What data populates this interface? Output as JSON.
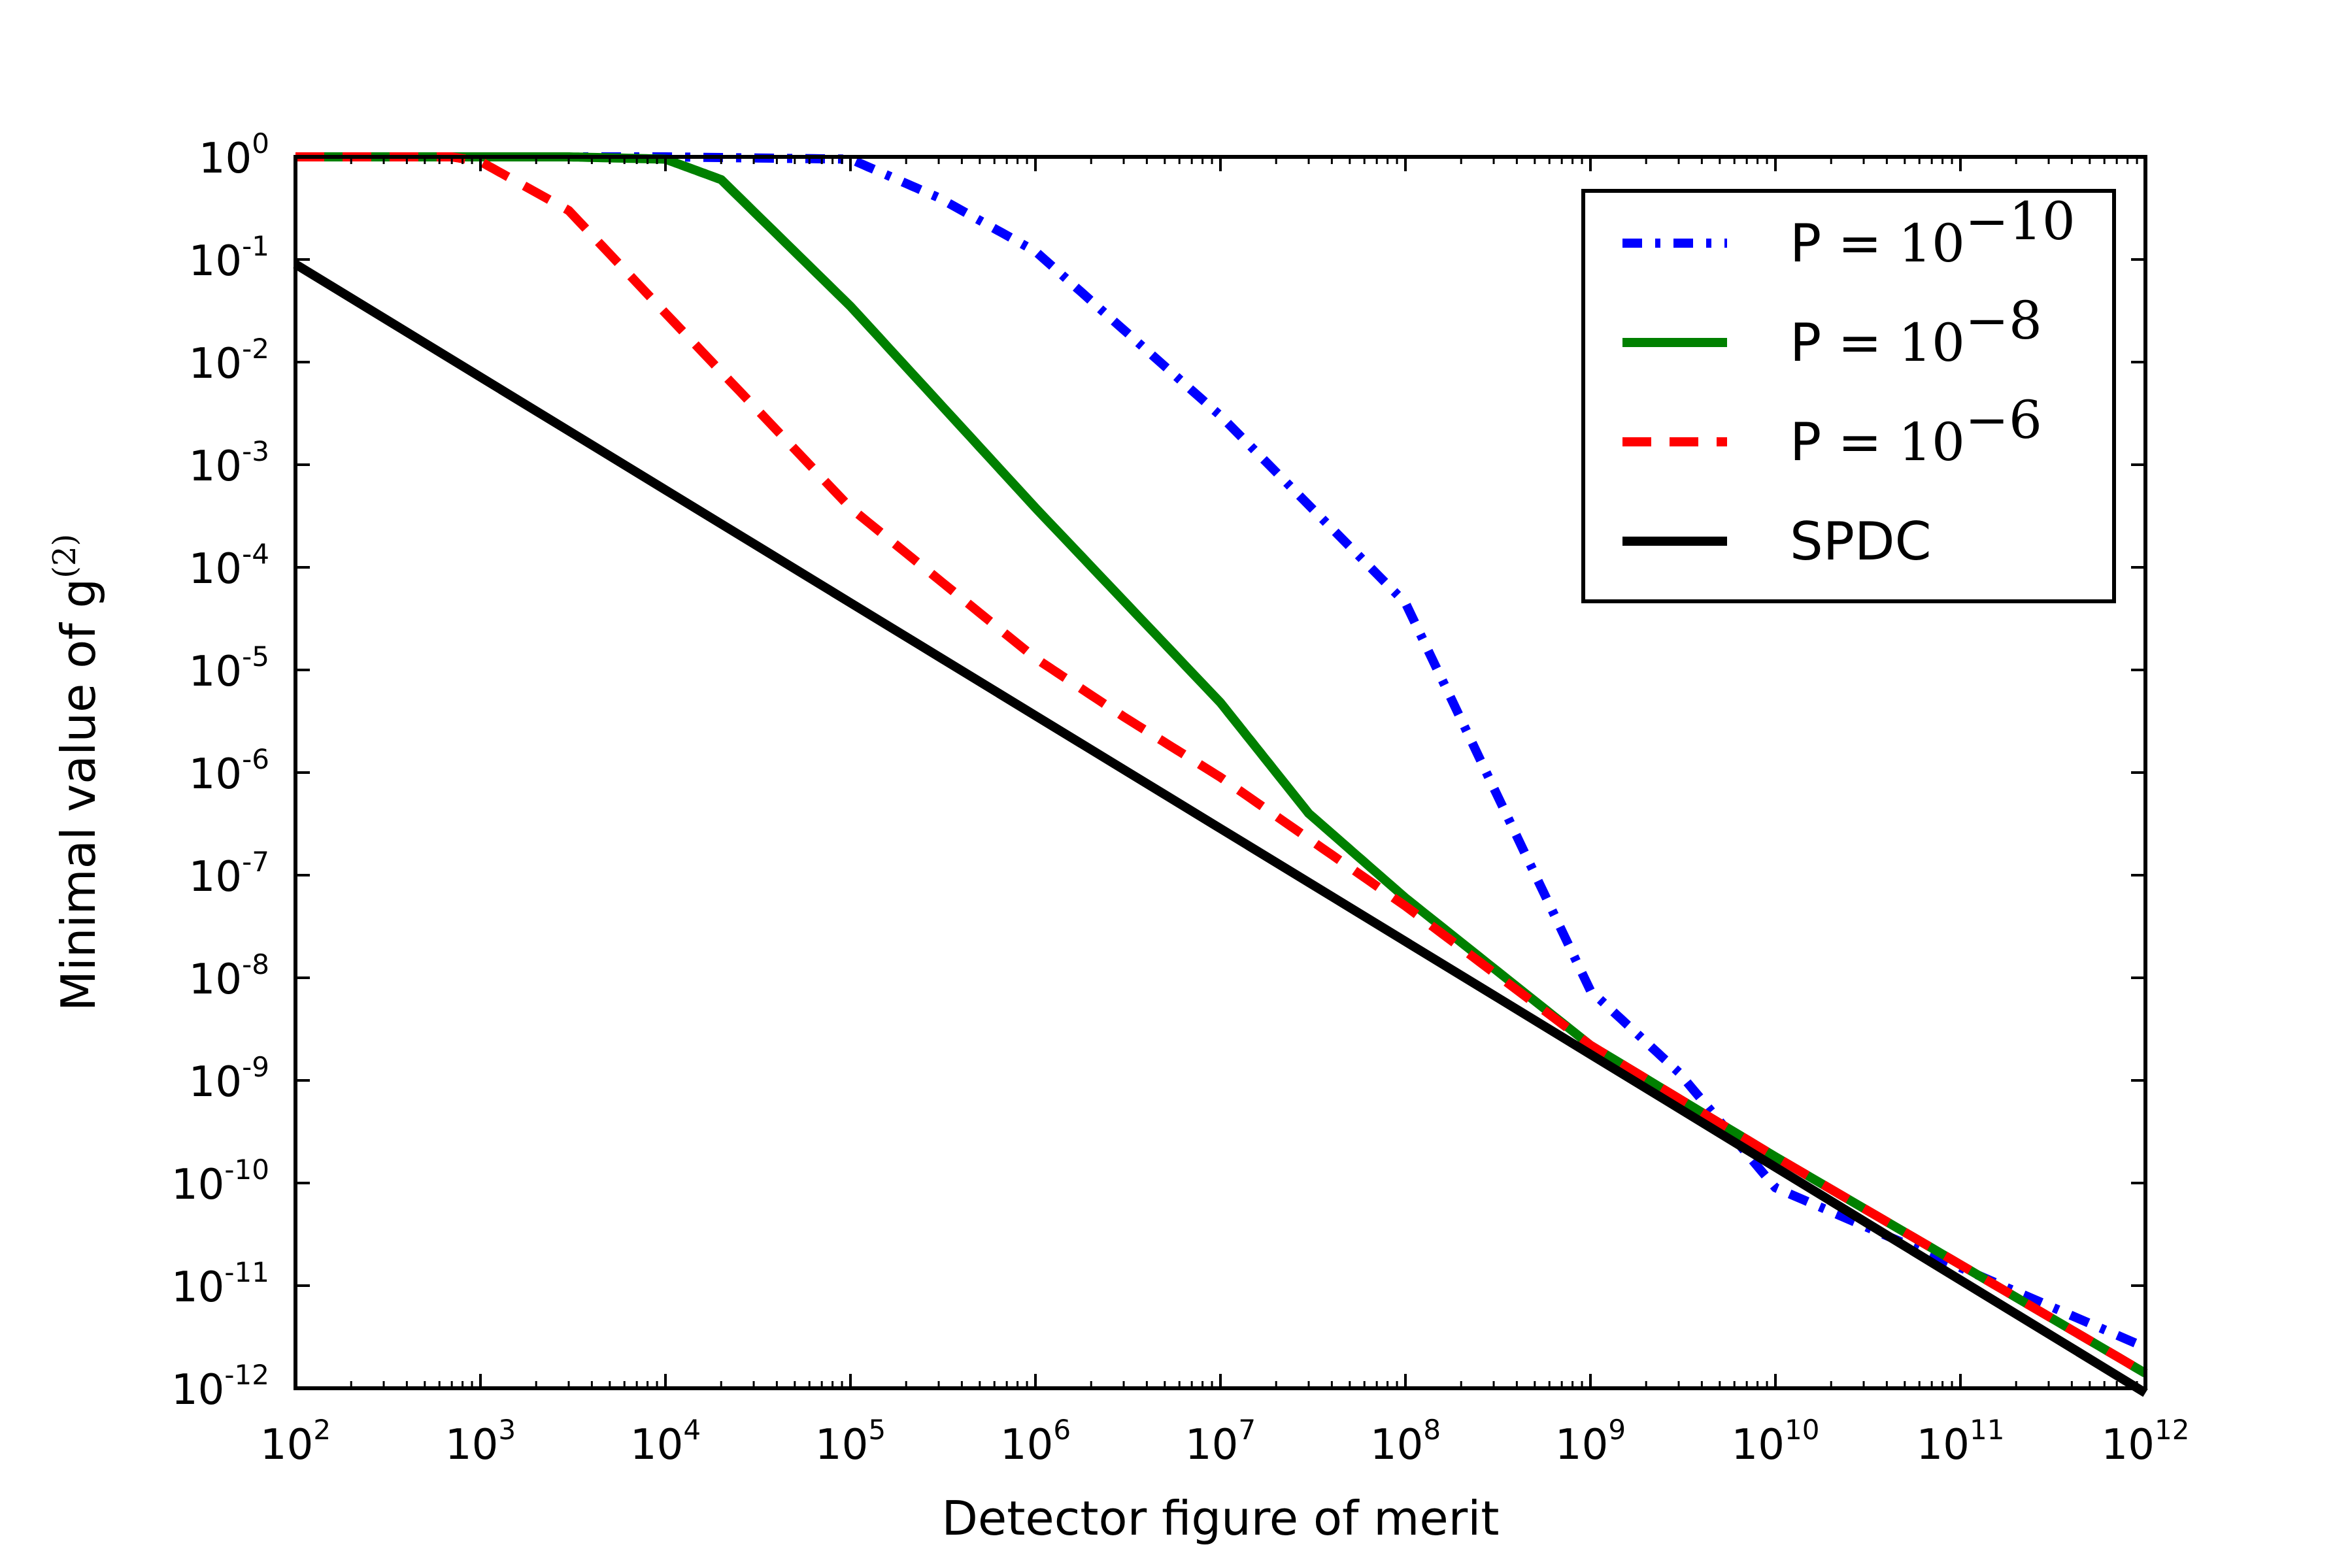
{
  "chart_data": {
    "type": "line",
    "title": "",
    "xlabel": "Detector figure of merit",
    "ylabel": "Minimal value of g",
    "ylabel_superscript": "(2)",
    "xscale": "log",
    "yscale": "log",
    "xlim": [
      100,
      1000000000000
    ],
    "ylim": [
      1e-12,
      1
    ],
    "xticks": [
      {
        "base": "10",
        "exp": "2"
      },
      {
        "base": "10",
        "exp": "3"
      },
      {
        "base": "10",
        "exp": "4"
      },
      {
        "base": "10",
        "exp": "5"
      },
      {
        "base": "10",
        "exp": "6"
      },
      {
        "base": "10",
        "exp": "7"
      },
      {
        "base": "10",
        "exp": "8"
      },
      {
        "base": "10",
        "exp": "9"
      },
      {
        "base": "10",
        "exp": "10"
      },
      {
        "base": "10",
        "exp": "11"
      },
      {
        "base": "10",
        "exp": "12"
      }
    ],
    "yticks": [
      {
        "base": "10",
        "exp": "0"
      },
      {
        "base": "10",
        "exp": "-1"
      },
      {
        "base": "10",
        "exp": "-2"
      },
      {
        "base": "10",
        "exp": "-3"
      },
      {
        "base": "10",
        "exp": "-4"
      },
      {
        "base": "10",
        "exp": "-5"
      },
      {
        "base": "10",
        "exp": "-6"
      },
      {
        "base": "10",
        "exp": "-7"
      },
      {
        "base": "10",
        "exp": "-8"
      },
      {
        "base": "10",
        "exp": "-9"
      },
      {
        "base": "10",
        "exp": "-10"
      },
      {
        "base": "10",
        "exp": "-11"
      },
      {
        "base": "10",
        "exp": "-12"
      }
    ],
    "legend_position": "top-right",
    "grid": false,
    "series": [
      {
        "name": "P = 10^-10",
        "legend_label": "P = ",
        "legend_math_base": "10",
        "legend_math_exp": "−10",
        "color": "#0000ff",
        "style": "dashdot",
        "x": [
          100,
          10000,
          100000,
          300000,
          1000000,
          10000000,
          100000000,
          1000000000,
          3000000000,
          10000000000,
          100000000000,
          1000000000000
        ],
        "y": [
          1,
          1,
          0.95,
          0.4,
          0.12,
          0.003,
          4.5e-05,
          7.5e-09,
          1.2e-09,
          9e-11,
          1.5e-11,
          2.5e-12
        ]
      },
      {
        "name": "P = 10^-8",
        "legend_label": "P = ",
        "legend_math_base": "10",
        "legend_math_exp": "−8",
        "color": "#008000",
        "style": "solid",
        "x": [
          100,
          3000,
          10000,
          20000,
          100000,
          1000000,
          10000000,
          30000000,
          100000000,
          1000000000,
          10000000000,
          100000000000,
          1000000000000
        ],
        "y": [
          1,
          1,
          0.95,
          0.6,
          0.035,
          0.00038,
          4.8e-06,
          4e-07,
          6e-08,
          2.2e-09,
          1.8e-10,
          1.6e-11,
          1.4e-12
        ]
      },
      {
        "name": "P = 10^-6",
        "legend_label": "P = ",
        "legend_math_base": "10",
        "legend_math_exp": "−6",
        "color": "#ff0000",
        "style": "dashed",
        "x": [
          100,
          700,
          1000,
          3000,
          10000,
          100000,
          1000000,
          3000000,
          10000000,
          100000000,
          1000000000,
          10000000000,
          100000000000,
          1000000000000
        ],
        "y": [
          1,
          1,
          0.9,
          0.3,
          0.03,
          0.00038,
          1.3e-05,
          3.5e-06,
          9e-07,
          5e-08,
          2.2e-09,
          1.8e-10,
          1.6e-11,
          1.4e-12
        ]
      },
      {
        "name": "SPDC",
        "legend_label": "SPDC",
        "legend_math_base": "",
        "legend_math_exp": "",
        "color": "#000000",
        "style": "solid",
        "x": [
          100,
          1000000000000
        ],
        "y": [
          0.09,
          9e-13
        ]
      }
    ]
  }
}
